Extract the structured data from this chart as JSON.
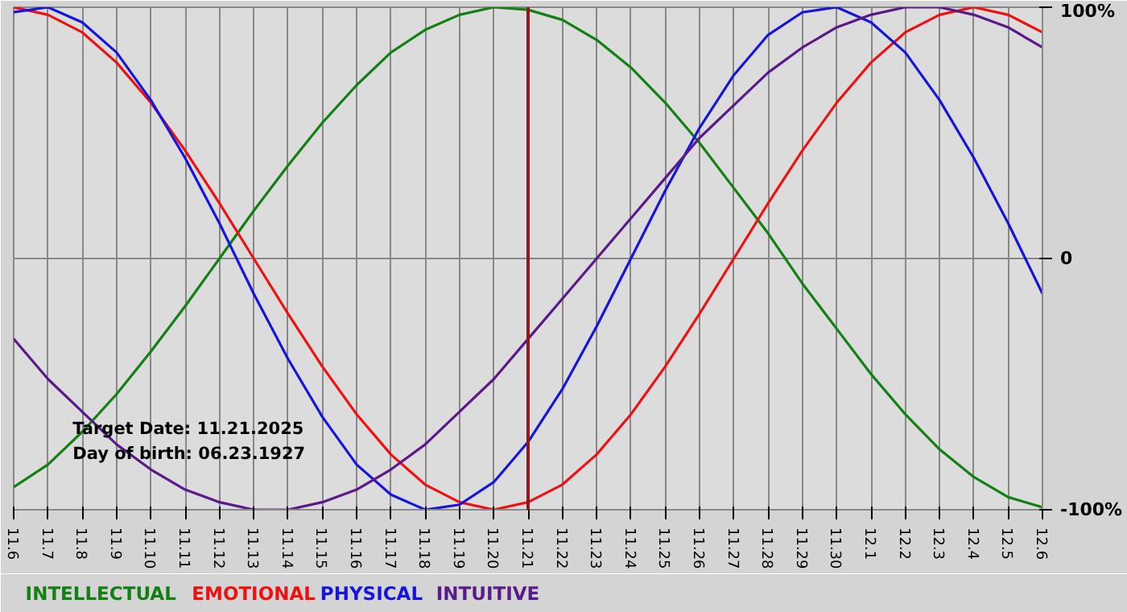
{
  "chart_data": {
    "type": "line",
    "categories": [
      "11.6",
      "11.7",
      "11.8",
      "11.9",
      "11.10",
      "11.11",
      "11.12",
      "11.13",
      "11.14",
      "11.15",
      "11.16",
      "11.17",
      "11.18",
      "11.19",
      "11.20",
      "11.21",
      "11.22",
      "11.23",
      "11.24",
      "11.25",
      "11.26",
      "11.27",
      "11.28",
      "11.29",
      "11.30",
      "12.1",
      "12.2",
      "12.3",
      "12.4",
      "12.5",
      "12.6"
    ],
    "series": [
      {
        "name": "INTELLECTUAL",
        "color": "#138013",
        "values": [
          -91,
          -82,
          -69,
          -54,
          -37,
          -19,
          0,
          19,
          37,
          54,
          69,
          82,
          91,
          97,
          100,
          99,
          95,
          87,
          76,
          62,
          46,
          28,
          10,
          -10,
          -28,
          -46,
          -62,
          -76,
          -87,
          -95,
          -99
        ]
      },
      {
        "name": "EMOTIONAL",
        "color": "#ee1111",
        "values": [
          100,
          97,
          90,
          78,
          62,
          43,
          22,
          0,
          -22,
          -43,
          -62,
          -78,
          -90,
          -97,
          -100,
          -97,
          -90,
          -78,
          -62,
          -43,
          -22,
          0,
          22,
          43,
          62,
          78,
          90,
          97,
          100,
          97,
          90
        ]
      },
      {
        "name": "PHYSICAL",
        "color": "#1515dd",
        "values": [
          98,
          100,
          94,
          82,
          63,
          40,
          14,
          -14,
          -40,
          -63,
          -82,
          -94,
          -100,
          -98,
          -89,
          -73,
          -52,
          -27,
          0,
          27,
          52,
          73,
          89,
          98,
          100,
          94,
          82,
          63,
          40,
          14,
          -14
        ]
      },
      {
        "name": "INTUITIVE",
        "color": "#5a1a8a",
        "values": [
          -32,
          -48,
          -61,
          -74,
          -84,
          -92,
          -97,
          -100,
          -100,
          -97,
          -92,
          -84,
          -74,
          -61,
          -48,
          -32,
          -16,
          0,
          16,
          32,
          48,
          61,
          74,
          84,
          92,
          97,
          100,
          100,
          97,
          92,
          84
        ]
      }
    ],
    "ylim": [
      -100,
      100
    ],
    "yticks": [
      {
        "value": 100,
        "label": "100%"
      },
      0,
      {
        "value": -100,
        "label": "-100%"
      }
    ],
    "grid": true,
    "legend": "bottom",
    "ref_lines": [
      {
        "axis": "x",
        "value": "11.21",
        "label": null,
        "color": "#8b1a1a"
      }
    ],
    "annotations": [
      "Target Date: 11.21.2025",
      "Day of birth: 06.23.1927"
    ]
  }
}
